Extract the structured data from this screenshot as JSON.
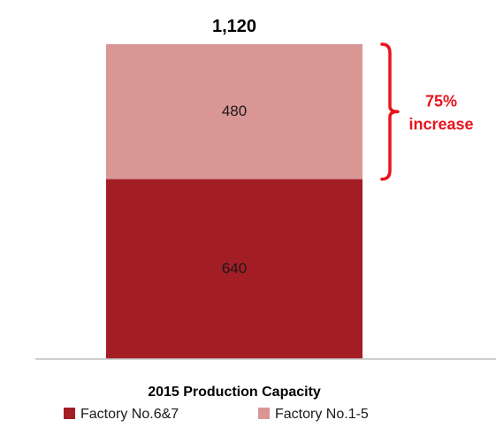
{
  "chart_data": {
    "type": "bar",
    "stacked": true,
    "categories": [
      "2015 Production Capacity"
    ],
    "series": [
      {
        "name": "Factory No.6&7",
        "values": [
          640
        ],
        "color": "#a31d25"
      },
      {
        "name": "Factory No.1-5",
        "values": [
          480
        ],
        "color": "#d99694"
      }
    ],
    "total_label": "1,120",
    "annotation": {
      "line1": "75%",
      "line2": "increase",
      "color": "#e8141c"
    },
    "ylim": [
      0,
      1120
    ],
    "grid": false,
    "legend_position": "bottom",
    "axis_color": "#bfbfbf"
  }
}
